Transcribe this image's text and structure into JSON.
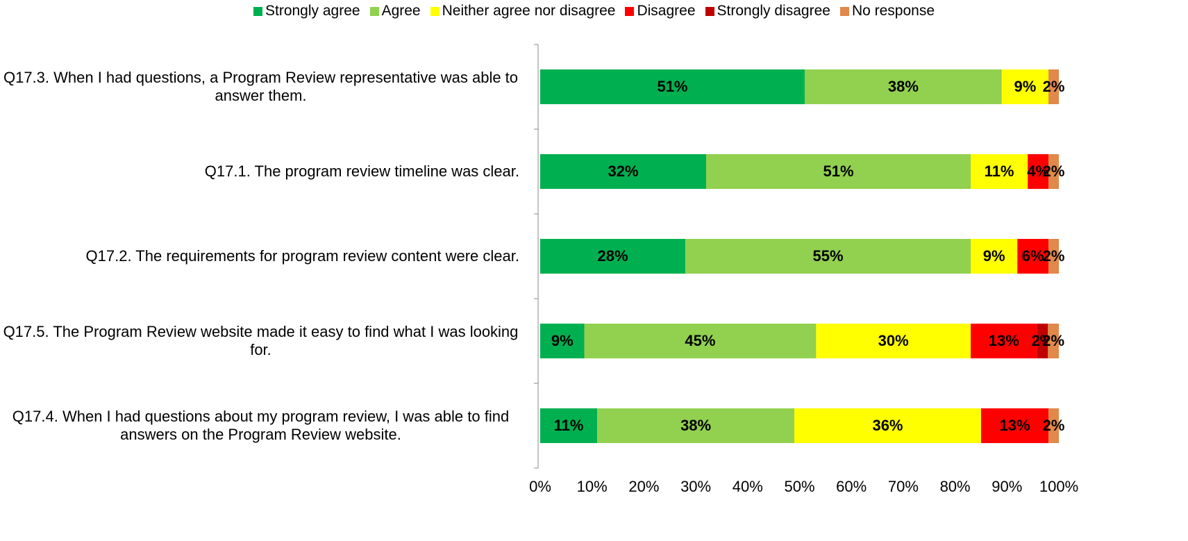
{
  "chart_data": {
    "type": "stacked_barh",
    "categories": [
      "Q17.3. When I had questions, a Program Review representative was able to answer them.",
      "Q17.1. The program review timeline was clear.",
      "Q17.2. The requirements for program review content were clear.",
      "Q17.5. The Program Review website made it easy to find what I was looking for.",
      "Q17.4. When I had questions about my program review, I was able to find answers on the Program Review website."
    ],
    "series": [
      {
        "name": "Strongly agree",
        "color": "#00b050",
        "values": [
          51,
          32,
          28,
          8.5,
          11
        ],
        "value_labels": [
          "51%",
          "32%",
          "28%",
          "9%",
          "11%"
        ]
      },
      {
        "name": "Agree",
        "color": "#92d050",
        "values": [
          38,
          51,
          55,
          44.7,
          38
        ],
        "value_labels": [
          "38%",
          "51%",
          "55%",
          "45%",
          "38%"
        ]
      },
      {
        "name": "Neither agree nor disagree",
        "color": "#ffff00",
        "values": [
          9,
          11,
          9,
          29.8,
          36
        ],
        "value_labels": [
          "9%",
          "11%",
          "9%",
          "30%",
          "36%"
        ]
      },
      {
        "name": "Disagree",
        "color": "#ff0000",
        "values": [
          null,
          4,
          6,
          12.8,
          13
        ],
        "value_labels": [
          null,
          "4%",
          "6%",
          "13%",
          "13%"
        ]
      },
      {
        "name": "Strongly disagree",
        "color": "#c00000",
        "values": [
          null,
          null,
          null,
          2.1,
          null
        ],
        "value_labels": [
          null,
          null,
          null,
          "2%",
          null
        ]
      },
      {
        "name": "No response",
        "color": "#e0894a",
        "values": [
          2,
          2,
          2,
          2.1,
          2
        ],
        "value_labels": [
          "2%",
          "2%",
          "2%",
          "2%",
          "2%"
        ]
      }
    ],
    "xlim": [
      0,
      100
    ],
    "xticks": [
      {
        "value": 0,
        "label": "0%"
      },
      {
        "value": 10,
        "label": "10%"
      },
      {
        "value": 20,
        "label": "20%"
      },
      {
        "value": 30,
        "label": "30%"
      },
      {
        "value": 40,
        "label": "40%"
      },
      {
        "value": 50,
        "label": "50%"
      },
      {
        "value": 60,
        "label": "60%"
      },
      {
        "value": 70,
        "label": "70%"
      },
      {
        "value": 80,
        "label": "80%"
      },
      {
        "value": 90,
        "label": "90%"
      },
      {
        "value": 100,
        "label": "100%"
      }
    ],
    "legend": "top"
  }
}
